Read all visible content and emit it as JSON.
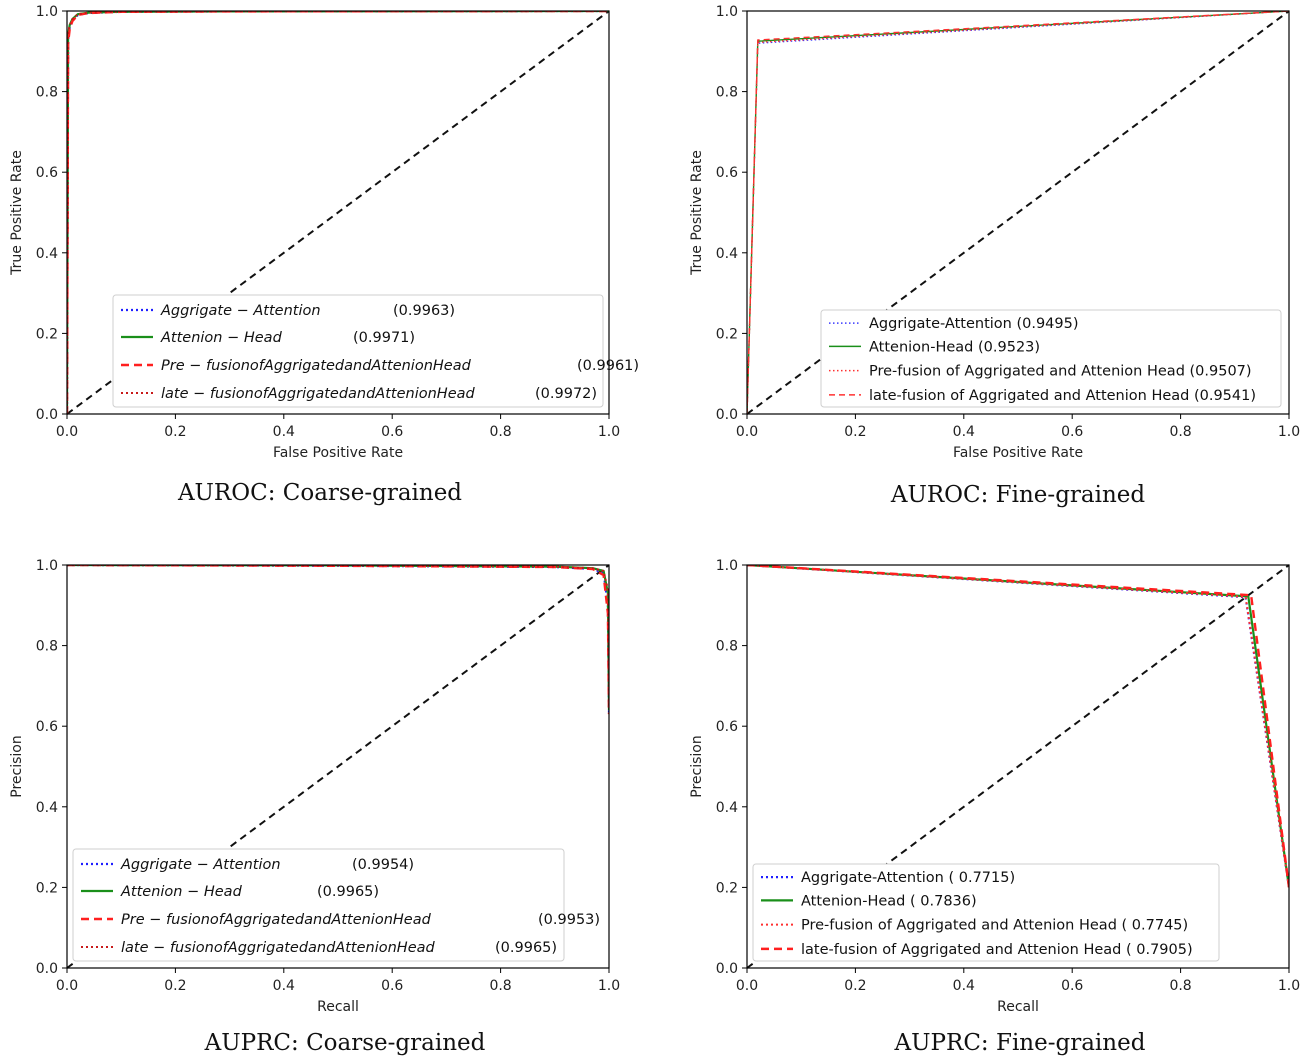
{
  "chart_data": [
    {
      "type": "line",
      "caption": "AUROC: Coarse-grained",
      "xlabel": "False Positive Rate",
      "ylabel": "True Positive Rate",
      "xlim": [
        0,
        1
      ],
      "ylim": [
        0,
        1
      ],
      "xticks": [
        "0.0",
        "0.2",
        "0.4",
        "0.6",
        "0.8",
        "1.0"
      ],
      "yticks": [
        "0.0",
        "0.2",
        "0.4",
        "0.6",
        "0.8",
        "1.0"
      ],
      "legend": {
        "placement": "lower-right",
        "italic": true,
        "entries": [
          {
            "label": "Aggrigate − Attention",
            "score": "(0.9963)"
          },
          {
            "label": "Attenion − Head",
            "score": "(0.9971)"
          },
          {
            "label": "Pre − fusionofAggrigatedandAttenionHead",
            "score": "(0.9961)"
          },
          {
            "label": "late − fusionofAggrigatedandAttenionHead",
            "score": "(0.9972)"
          }
        ]
      },
      "reference_line": {
        "x": [
          0,
          1
        ],
        "y": [
          0,
          1
        ]
      },
      "series": [
        {
          "style": "blue-dotted",
          "x": [
            0,
            0.002,
            0.005,
            0.01,
            0.02,
            0.04,
            0.1,
            0.3,
            1.0
          ],
          "y": [
            0,
            0.93,
            0.96,
            0.975,
            0.99,
            0.995,
            0.998,
            0.999,
            1.0
          ]
        },
        {
          "style": "green-solid",
          "x": [
            0,
            0.002,
            0.005,
            0.01,
            0.02,
            0.04,
            0.1,
            0.3,
            1.0
          ],
          "y": [
            0,
            0.94,
            0.965,
            0.98,
            0.992,
            0.996,
            0.998,
            0.999,
            1.0
          ]
        },
        {
          "style": "red-dashed",
          "x": [
            0,
            0.002,
            0.005,
            0.01,
            0.02,
            0.04,
            0.1,
            0.3,
            1.0
          ],
          "y": [
            0,
            0.92,
            0.955,
            0.975,
            0.99,
            0.995,
            0.998,
            0.999,
            1.0
          ]
        },
        {
          "style": "darkred-dotted",
          "x": [
            0,
            0.002,
            0.005,
            0.01,
            0.02,
            0.04,
            0.1,
            0.3,
            1.0
          ],
          "y": [
            0,
            0.945,
            0.965,
            0.98,
            0.992,
            0.996,
            0.998,
            0.999,
            1.0
          ]
        }
      ]
    },
    {
      "type": "line",
      "caption": "AUROC: Fine-grained",
      "xlabel": "False Positive Rate",
      "ylabel": "True Positive Rate",
      "xlim": [
        0,
        1
      ],
      "ylim": [
        0,
        1
      ],
      "xticks": [
        "0.0",
        "0.2",
        "0.4",
        "0.6",
        "0.8",
        "1.0"
      ],
      "yticks": [
        "0.0",
        "0.2",
        "0.4",
        "0.6",
        "0.8",
        "1.0"
      ],
      "legend": {
        "placement": "lower-right",
        "italic": false,
        "entries": [
          {
            "label": "Aggrigate-Attention",
            "score": "(0.9495)"
          },
          {
            "label": "Attenion-Head",
            "score": "(0.9523)"
          },
          {
            "label": "Pre-fusion of Aggrigated and Attenion Head",
            "score": "(0.9507)"
          },
          {
            "label": "late-fusion of Aggrigated and Attenion Head",
            "score": "(0.9541)"
          }
        ]
      },
      "reference_line": {
        "x": [
          0,
          1
        ],
        "y": [
          0,
          1
        ]
      },
      "series": [
        {
          "style": "blue-dotted-thin",
          "x": [
            0,
            0.02,
            1.0
          ],
          "y": [
            0,
            0.92,
            1.0
          ]
        },
        {
          "style": "green-solid-thin",
          "x": [
            0,
            0.02,
            1.0
          ],
          "y": [
            0,
            0.925,
            1.0
          ]
        },
        {
          "style": "red-dotted-thin",
          "x": [
            0,
            0.02,
            1.0
          ],
          "y": [
            0,
            0.922,
            1.0
          ]
        },
        {
          "style": "red-dashed-thin",
          "x": [
            0,
            0.02,
            1.0
          ],
          "y": [
            0,
            0.928,
            1.0
          ]
        }
      ]
    },
    {
      "type": "line",
      "caption": "AUPRC: Coarse-grained",
      "xlabel": "Recall",
      "ylabel": "Precision",
      "xlim": [
        0,
        1
      ],
      "ylim": [
        0,
        1
      ],
      "xticks": [
        "0.0",
        "0.2",
        "0.4",
        "0.6",
        "0.8",
        "1.0"
      ],
      "yticks": [
        "0.0",
        "0.2",
        "0.4",
        "0.6",
        "0.8",
        "1.0"
      ],
      "legend": {
        "placement": "lower-left",
        "italic": true,
        "entries": [
          {
            "label": "Aggrigate − Attention",
            "score": "(0.9954)"
          },
          {
            "label": "Attenion − Head",
            "score": "(0.9965)"
          },
          {
            "label": "Pre − fusionofAggrigatedandAttenionHead",
            "score": "(0.9953)"
          },
          {
            "label": "late − fusionofAggrigatedandAttenionHead",
            "score": "(0.9965)"
          }
        ]
      },
      "reference_line": {
        "x": [
          0,
          1
        ],
        "y": [
          0,
          1
        ]
      },
      "series": [
        {
          "style": "blue-dotted",
          "x": [
            0,
            0.5,
            0.9,
            0.97,
            0.99,
            0.998,
            1.0
          ],
          "y": [
            1.0,
            0.998,
            0.995,
            0.99,
            0.98,
            0.9,
            0.63
          ]
        },
        {
          "style": "green-solid",
          "x": [
            0,
            0.5,
            0.9,
            0.97,
            0.99,
            0.998,
            1.0
          ],
          "y": [
            1.0,
            0.999,
            0.996,
            0.992,
            0.985,
            0.93,
            0.64
          ]
        },
        {
          "style": "red-dashed",
          "x": [
            0,
            0.5,
            0.9,
            0.97,
            0.99,
            0.998,
            1.0
          ],
          "y": [
            1.0,
            0.998,
            0.995,
            0.99,
            0.975,
            0.88,
            0.63
          ]
        },
        {
          "style": "darkred-dotted",
          "x": [
            0,
            0.5,
            0.9,
            0.97,
            0.99,
            0.998,
            1.0
          ],
          "y": [
            1.0,
            0.999,
            0.996,
            0.992,
            0.985,
            0.94,
            0.65
          ]
        }
      ]
    },
    {
      "type": "line",
      "caption": "AUPRC: Fine-grained",
      "xlabel": "Recall",
      "ylabel": "Precision",
      "xlim": [
        0,
        1
      ],
      "ylim": [
        0,
        1
      ],
      "xticks": [
        "0.0",
        "0.2",
        "0.4",
        "0.6",
        "0.8",
        "1.0"
      ],
      "yticks": [
        "0.0",
        "0.2",
        "0.4",
        "0.6",
        "0.8",
        "1.0"
      ],
      "legend": {
        "placement": "lower-left",
        "italic": false,
        "entries": [
          {
            "label": "Aggrigate-Attention",
            "score": "( 0.7715)"
          },
          {
            "label": "Attenion-Head",
            "score": "( 0.7836)"
          },
          {
            "label": "Pre-fusion of Aggrigated and Attenion Head",
            "score": "( 0.7745)"
          },
          {
            "label": "late-fusion of Aggrigated and Attenion Head",
            "score": "( 0.7905)"
          }
        ]
      },
      "reference_line": {
        "x": [
          0,
          1
        ],
        "y": [
          0,
          1
        ]
      },
      "series": [
        {
          "style": "blue-dotted",
          "x": [
            0,
            0.92,
            1.0
          ],
          "y": [
            1.0,
            0.92,
            0.2
          ]
        },
        {
          "style": "green-solid",
          "x": [
            0,
            0.925,
            1.0
          ],
          "y": [
            1.0,
            0.922,
            0.2
          ]
        },
        {
          "style": "red-dotted",
          "x": [
            0,
            0.92,
            1.0
          ],
          "y": [
            1.0,
            0.921,
            0.2
          ]
        },
        {
          "style": "red-dashed",
          "x": [
            0,
            0.93,
            1.0
          ],
          "y": [
            1.0,
            0.925,
            0.2
          ]
        }
      ]
    }
  ]
}
